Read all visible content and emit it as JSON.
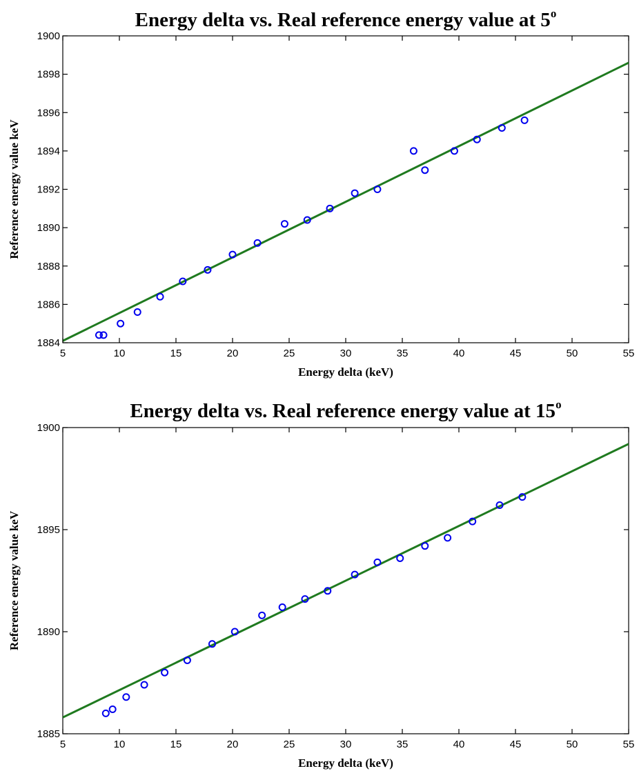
{
  "chart_data": [
    {
      "type": "scatter",
      "title": "Energy delta vs. Real reference energy value at 5",
      "title_superscript": "o",
      "xlabel": "Energy delta (keV)",
      "ylabel": "Reference energy value keV",
      "xlim": [
        5,
        55
      ],
      "ylim": [
        1884,
        1900
      ],
      "xticks": [
        5,
        10,
        15,
        20,
        25,
        30,
        35,
        40,
        45,
        50,
        55
      ],
      "yticks": [
        1884,
        1886,
        1888,
        1890,
        1892,
        1894,
        1896,
        1898,
        1900
      ],
      "grid": false,
      "marker_color": "#0000ee",
      "line_color": "#1f7a1f",
      "points": [
        {
          "x": 8.2,
          "y": 1884.4
        },
        {
          "x": 8.6,
          "y": 1884.4
        },
        {
          "x": 10.1,
          "y": 1885.0
        },
        {
          "x": 11.6,
          "y": 1885.6
        },
        {
          "x": 13.6,
          "y": 1886.4
        },
        {
          "x": 15.6,
          "y": 1887.2
        },
        {
          "x": 17.8,
          "y": 1887.8
        },
        {
          "x": 20.0,
          "y": 1888.6
        },
        {
          "x": 22.2,
          "y": 1889.2
        },
        {
          "x": 24.6,
          "y": 1890.2
        },
        {
          "x": 26.6,
          "y": 1890.4
        },
        {
          "x": 28.6,
          "y": 1891.0
        },
        {
          "x": 30.8,
          "y": 1891.8
        },
        {
          "x": 32.8,
          "y": 1892.0
        },
        {
          "x": 36.0,
          "y": 1894.0
        },
        {
          "x": 37.0,
          "y": 1893.0
        },
        {
          "x": 39.6,
          "y": 1894.0
        },
        {
          "x": 41.6,
          "y": 1894.6
        },
        {
          "x": 43.8,
          "y": 1895.2
        },
        {
          "x": 45.8,
          "y": 1895.6
        }
      ],
      "fit_line": {
        "x": [
          5,
          55
        ],
        "y": [
          1884.1,
          1898.6
        ]
      }
    },
    {
      "type": "scatter",
      "title": "Energy delta vs. Real reference energy value at 15",
      "title_superscript": "o",
      "xlabel": "Energy delta (keV)",
      "ylabel": "Reference energy value keV",
      "xlim": [
        5,
        55
      ],
      "ylim": [
        1885,
        1900
      ],
      "xticks": [
        5,
        10,
        15,
        20,
        25,
        30,
        35,
        40,
        45,
        50,
        55
      ],
      "yticks": [
        1885,
        1890,
        1895,
        1900
      ],
      "grid": false,
      "marker_color": "#0000ee",
      "line_color": "#1f7a1f",
      "points": [
        {
          "x": 8.8,
          "y": 1886.0
        },
        {
          "x": 9.4,
          "y": 1886.2
        },
        {
          "x": 10.6,
          "y": 1886.8
        },
        {
          "x": 12.2,
          "y": 1887.4
        },
        {
          "x": 14.0,
          "y": 1888.0
        },
        {
          "x": 16.0,
          "y": 1888.6
        },
        {
          "x": 18.2,
          "y": 1889.4
        },
        {
          "x": 20.2,
          "y": 1890.0
        },
        {
          "x": 22.6,
          "y": 1890.8
        },
        {
          "x": 24.4,
          "y": 1891.2
        },
        {
          "x": 26.4,
          "y": 1891.6
        },
        {
          "x": 28.4,
          "y": 1892.0
        },
        {
          "x": 30.8,
          "y": 1892.8
        },
        {
          "x": 32.8,
          "y": 1893.4
        },
        {
          "x": 34.8,
          "y": 1893.6
        },
        {
          "x": 37.0,
          "y": 1894.2
        },
        {
          "x": 39.0,
          "y": 1894.6
        },
        {
          "x": 41.2,
          "y": 1895.4
        },
        {
          "x": 43.6,
          "y": 1896.2
        },
        {
          "x": 45.6,
          "y": 1896.6
        }
      ],
      "fit_line": {
        "x": [
          5,
          55
        ],
        "y": [
          1885.8,
          1899.2
        ]
      }
    }
  ]
}
